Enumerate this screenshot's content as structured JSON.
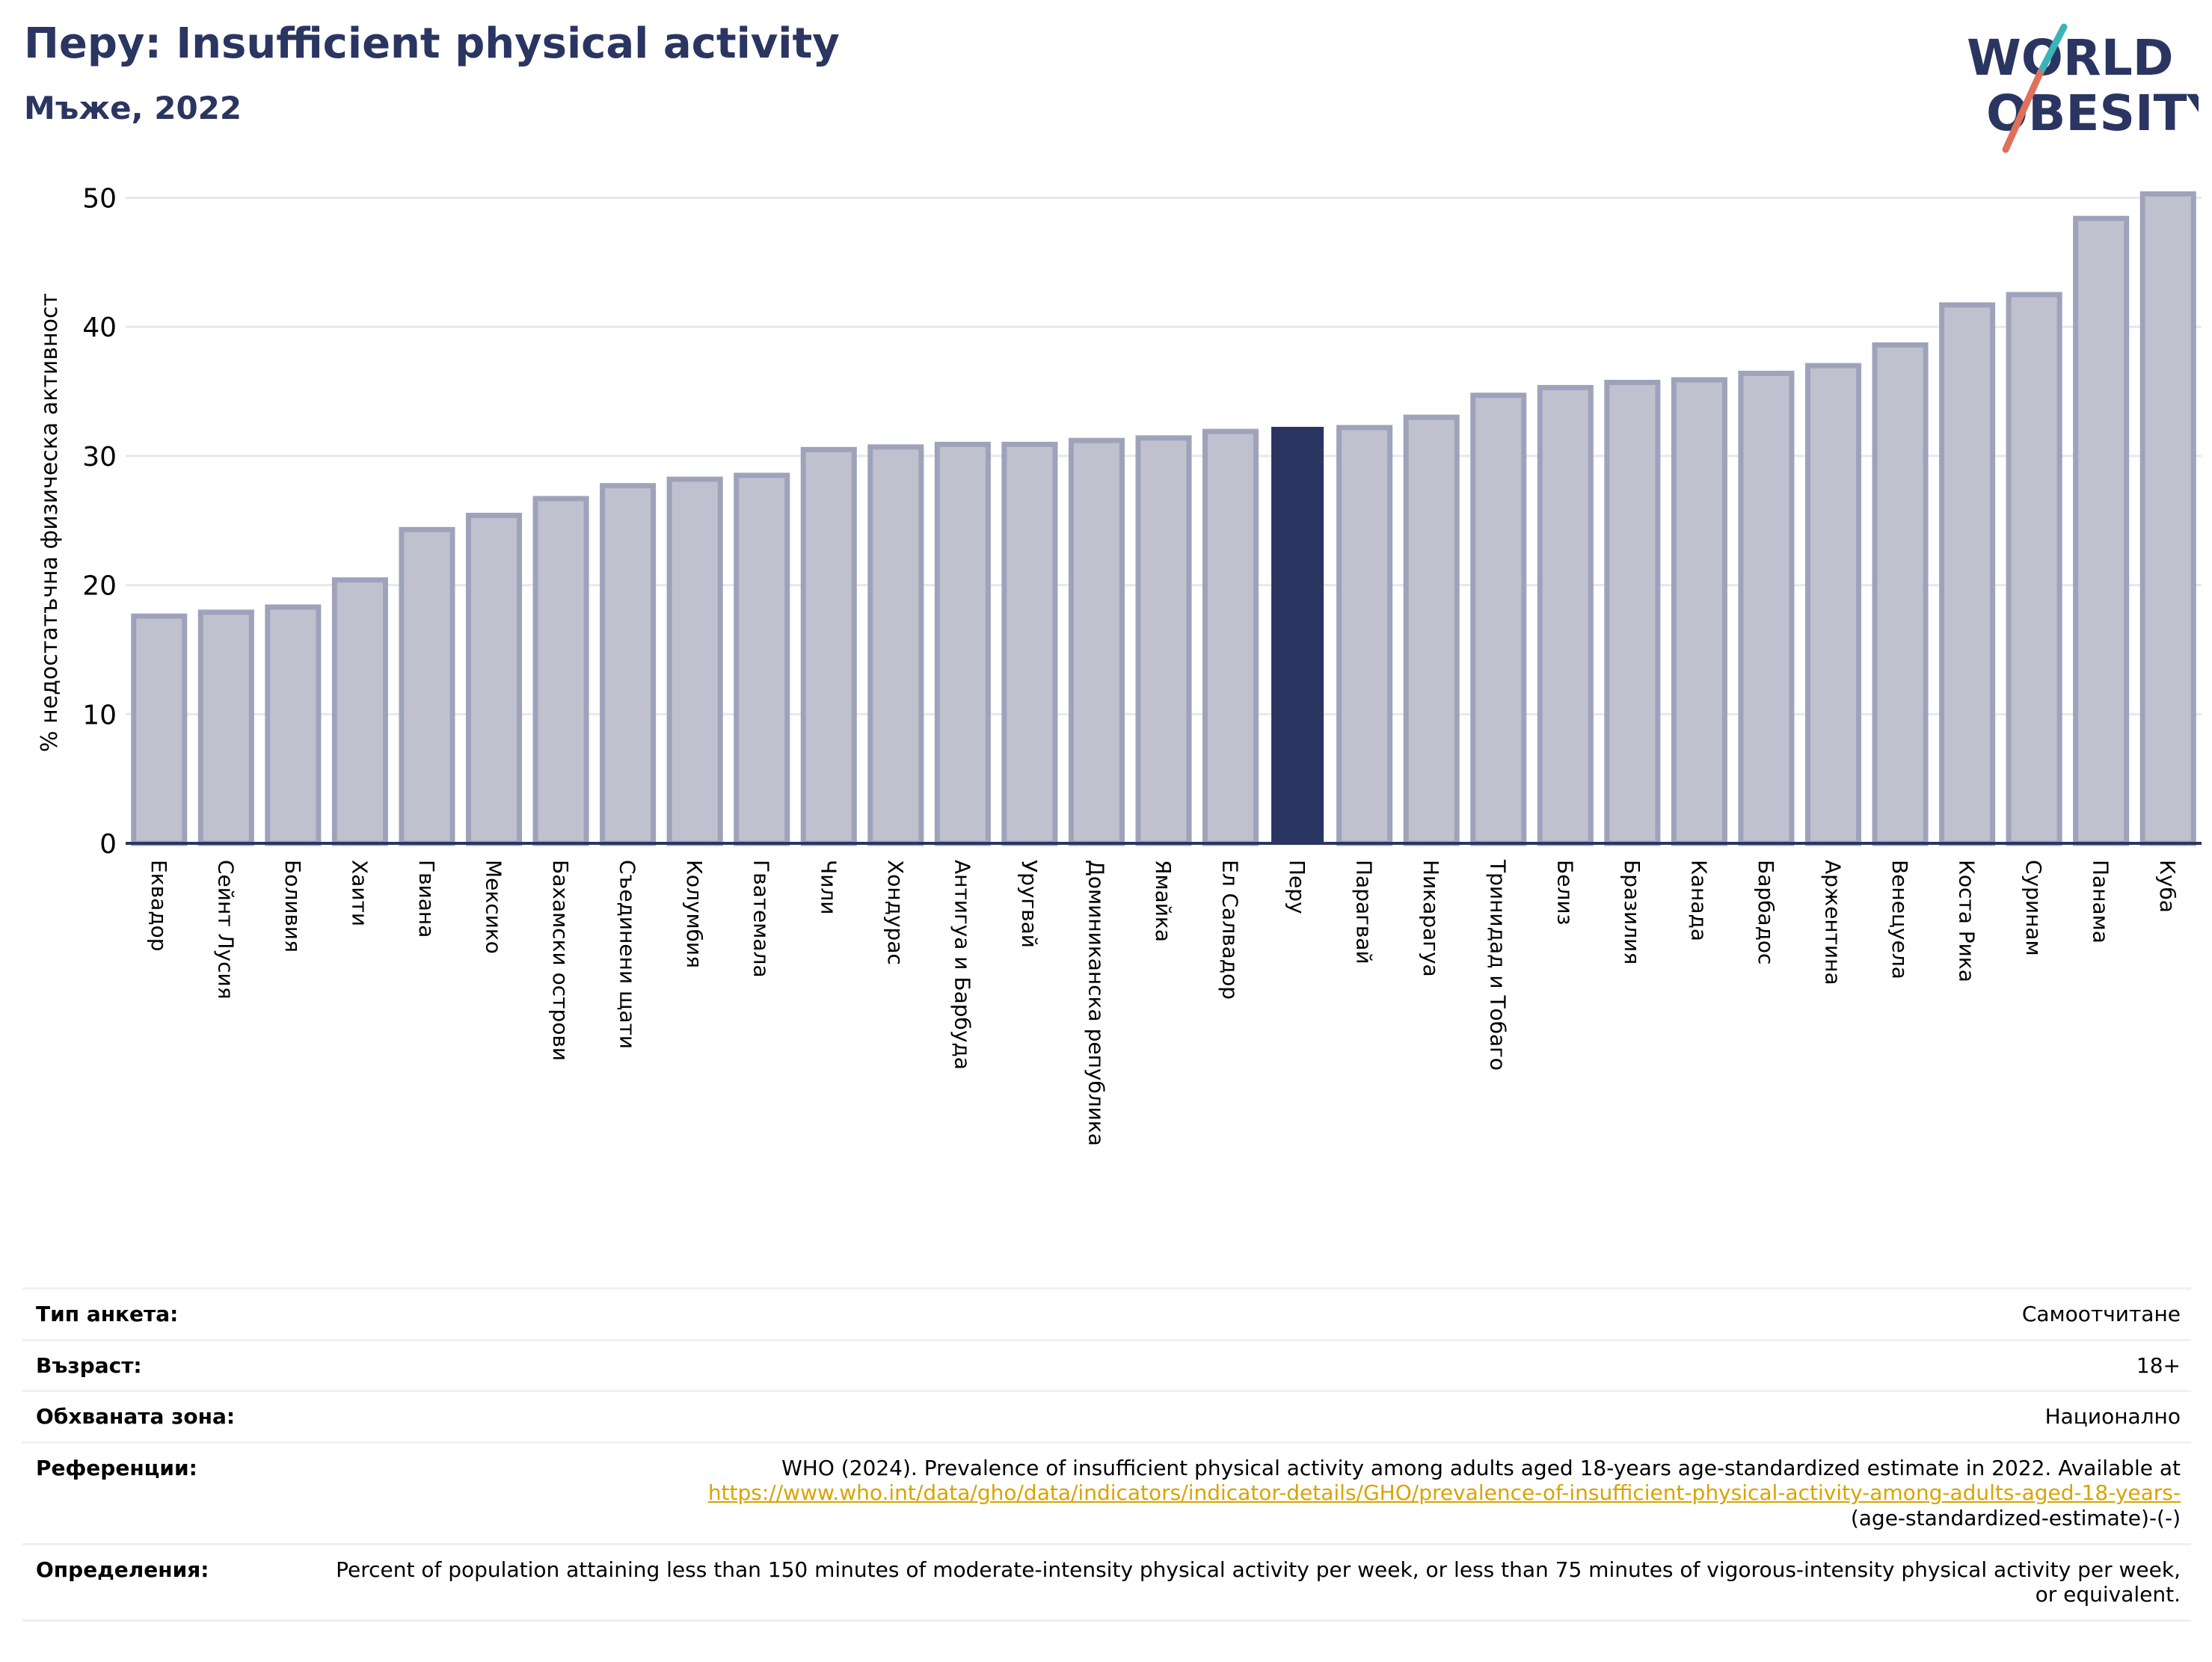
{
  "header": {
    "title": "Перу: Insufficient physical activity",
    "subtitle": "Мъже, 2022"
  },
  "logo": {
    "line1": "WORLD",
    "line2": "OBESITY"
  },
  "colors": {
    "bar": "#bfc1cf",
    "bar_edge": "#9ea3bb",
    "highlight": "#2b3561",
    "title": "#2b3561",
    "link": "#d9a300"
  },
  "chart_data": {
    "type": "bar",
    "ylabel": "% недостатъчна физическа активност",
    "ylim": [
      0,
      52
    ],
    "yticks": [
      0,
      10,
      20,
      30,
      40,
      50
    ],
    "grid": true,
    "highlight": "Перу",
    "categories": [
      "Еквадор",
      "Сейнт Лусия",
      "Боливия",
      "Хаити",
      "Гвиана",
      "Мексико",
      "Бахамски острови",
      "Съединени щати",
      "Колумбия",
      "Гватемала",
      "Чили",
      "Хондурас",
      "Антигуа и Барбуда",
      "Уругвай",
      "Доминиканска република",
      "Ямайка",
      "Ел Салвадор",
      "Перу",
      "Парагвай",
      "Никарагуа",
      "Тринидад и Тобаго",
      "Белиз",
      "Бразилия",
      "Канада",
      "Барбадос",
      "Аржентина",
      "Венецуела",
      "Коста Рика",
      "Суринам",
      "Панама",
      "Куба"
    ],
    "values": [
      17.6,
      17.9,
      18.3,
      20.4,
      24.3,
      25.4,
      26.7,
      27.7,
      28.2,
      28.5,
      30.5,
      30.7,
      30.9,
      30.9,
      31.2,
      31.4,
      31.9,
      32.2,
      32.2,
      33.0,
      34.7,
      35.3,
      35.7,
      35.9,
      36.4,
      37.0,
      38.6,
      41.7,
      42.5,
      48.4,
      50.3
    ]
  },
  "info": [
    {
      "label": "Тип анкета:",
      "value": "Самоотчитане"
    },
    {
      "label": "Възраст:",
      "value": "18+"
    },
    {
      "label": "Обхваната зона:",
      "value": "Национално"
    },
    {
      "label": "Референции:",
      "value": "WHO (2024). Prevalence of insufficient physical activity among adults aged 18-years age-standardized estimate in 2022. Available at",
      "link": "https://www.who.int/data/gho/data/indicators/indicator-details/GHO/prevalence-of-insufficient-physical-activity-among-adults-aged-18-years-",
      "value_end": "(age-standardized-estimate)-(-)"
    },
    {
      "label": "Определения:",
      "value": "Percent of population attaining less than 150 minutes of moderate-intensity physical activity per week, or less than 75 minutes of vigorous-intensity physical activity per week, or equivalent."
    }
  ]
}
